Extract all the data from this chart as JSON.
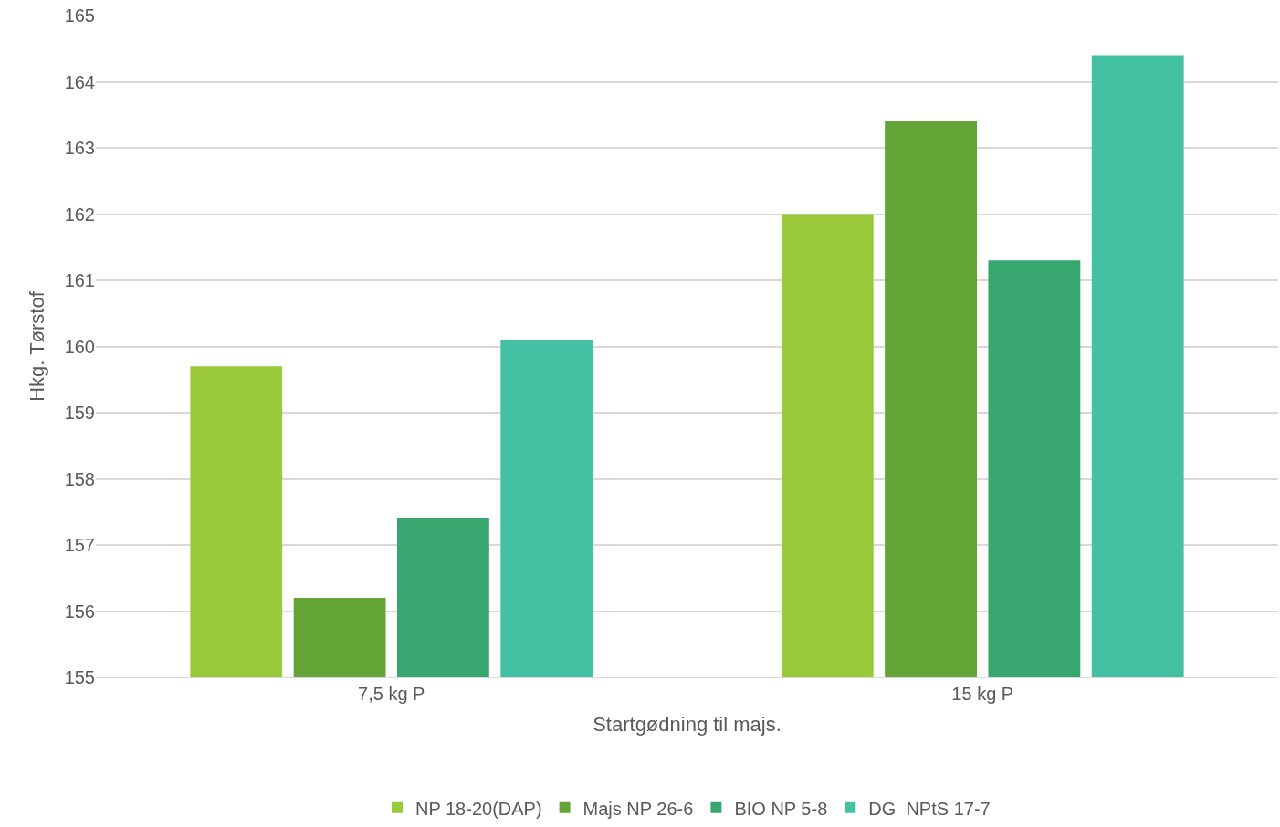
{
  "chart_data": {
    "type": "bar",
    "xlabel": "Startgødning til majs.",
    "ylabel": "Hkg. Tørstof",
    "categories": [
      "7,5 kg P",
      "15 kg P"
    ],
    "series": [
      {
        "name": "NP 18-20(DAP)",
        "color": "#9aca3c",
        "values": [
          159.7,
          162.0
        ]
      },
      {
        "name": "Majs NP 26-6",
        "color": "#64a437",
        "values": [
          156.2,
          163.4
        ]
      },
      {
        "name": "BIO NP 5-8",
        "color": "#37a76f",
        "values": [
          157.4,
          161.3
        ]
      },
      {
        "name": "DG  NPtS 17-7",
        "color": "#44c1a3",
        "values": [
          160.1,
          164.4
        ]
      }
    ],
    "ylim": [
      155,
      165
    ],
    "yticks": [
      155,
      156,
      157,
      158,
      159,
      160,
      161,
      162,
      163,
      164,
      165
    ],
    "grid": "y",
    "legend": "bottom"
  }
}
